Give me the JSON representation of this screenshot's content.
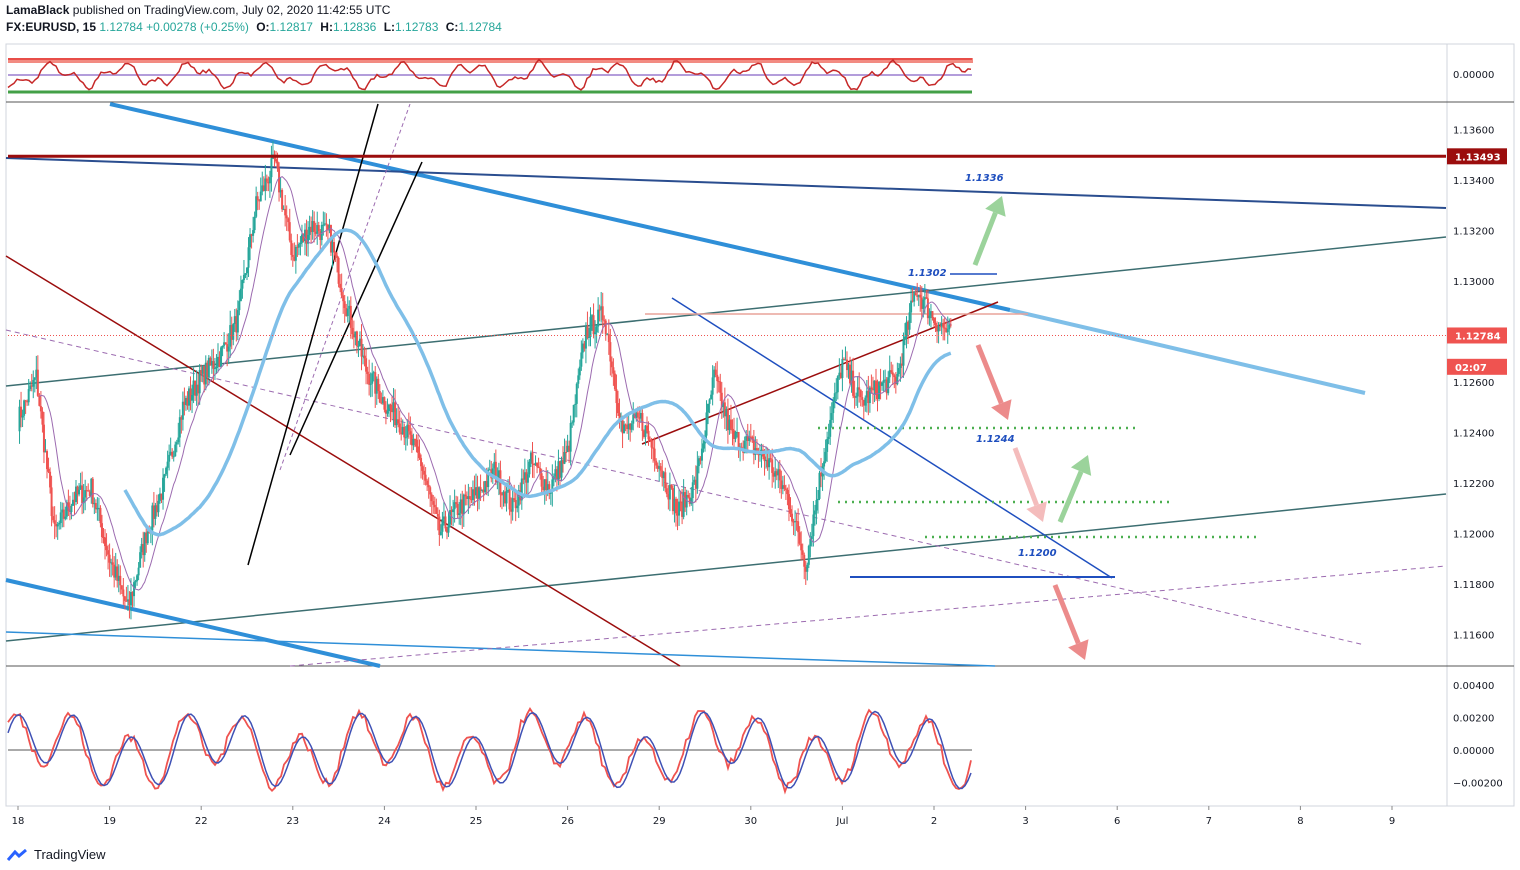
{
  "header": {
    "author": "LamaBlack",
    "published_text": "published on TradingView.com, July 02, 2020 11:42:55 UTC",
    "symbol": "FX:EURUSD, 15",
    "last": "1.12784",
    "change": "+0.00278 (+0.25%)",
    "o_label": "O:",
    "o_value": "1.12817",
    "h_label": "H:",
    "h_value": "1.12836",
    "l_label": "L:",
    "l_value": "1.12783",
    "c_label": "C:",
    "c_value": "1.12784"
  },
  "footer": {
    "brand": "TradingView",
    "logo_icon": "tradingview-logo-icon"
  },
  "colors": {
    "up": "#26a69a",
    "down": "#ef5350",
    "ma_fast": "#9c6bb0",
    "ma_slow": "#7fbfe8",
    "resistance": "#9b0d0d",
    "trend_blue": "#2f8fd8",
    "channel": "#3c6e71",
    "dotted_green": "#4caf50",
    "arrow_green": "#9bd39b",
    "arrow_red": "#ec8b8b"
  },
  "chart_data": [
    {
      "type": "candlestick",
      "panel": "main",
      "price_axis_ticks": [
        "1.13600",
        "1.13400",
        "1.13200",
        "1.13000",
        "1.12600",
        "1.12400",
        "1.12200",
        "1.12000",
        "1.11800",
        "1.11600"
      ],
      "ylim": [
        1.1148,
        1.137
      ],
      "time_axis_ticks": [
        "18",
        "19",
        "22",
        "23",
        "24",
        "25",
        "26",
        "29",
        "30",
        "Jul",
        "2",
        "3",
        "6",
        "7",
        "8",
        "9"
      ],
      "price_markers": [
        {
          "label": "1.13493",
          "value": 1.13493,
          "color": "#9b0d0d"
        },
        {
          "label": "1.12784",
          "value": 1.12784,
          "color": "#ef5350"
        },
        {
          "label": "02:07",
          "value": 1.1266,
          "color": "#ef5350"
        }
      ],
      "annotations": [
        {
          "text": "1.1336",
          "x": "Jul 2",
          "y": 1.1336
        },
        {
          "text": "1.1302",
          "x": "Jul 1",
          "y": 1.1302
        },
        {
          "text": "1.1244",
          "x": "Jul 2",
          "y": 1.1244
        },
        {
          "text": "1.1200",
          "x": "Jul 3",
          "y": 1.12
        }
      ],
      "horizontal_levels": [
        1.13493,
        1.1289,
        1.1244,
        1.1215,
        1.1201,
        1.1185
      ],
      "price_path": [
        [
          0,
          1.1245
        ],
        [
          1,
          1.1262
        ],
        [
          2,
          1.12
        ],
        [
          3,
          1.1214
        ],
        [
          4,
          1.1218
        ],
        [
          5,
          1.119
        ],
        [
          6,
          1.117
        ],
        [
          7,
          1.12
        ],
        [
          8,
          1.122
        ],
        [
          9,
          1.125
        ],
        [
          10,
          1.1262
        ],
        [
          11,
          1.127
        ],
        [
          12,
          1.1285
        ],
        [
          13,
          1.133
        ],
        [
          14,
          1.1347
        ],
        [
          15,
          1.131
        ],
        [
          16,
          1.1322
        ],
        [
          17,
          1.1318
        ],
        [
          18,
          1.1288
        ],
        [
          19,
          1.1265
        ],
        [
          20,
          1.1252
        ],
        [
          21,
          1.1243
        ],
        [
          22,
          1.1228
        ],
        [
          23,
          1.12
        ],
        [
          24,
          1.121
        ],
        [
          25,
          1.1215
        ],
        [
          26,
          1.1225
        ],
        [
          27,
          1.121
        ],
        [
          28,
          1.1228
        ],
        [
          29,
          1.1218
        ],
        [
          30,
          1.1232
        ],
        [
          31,
          1.128
        ],
        [
          32,
          1.1287
        ],
        [
          33,
          1.124
        ],
        [
          34,
          1.1245
        ],
        [
          35,
          1.1228
        ],
        [
          36,
          1.1208
        ],
        [
          37,
          1.122
        ],
        [
          38,
          1.1262
        ],
        [
          39,
          1.1238
        ],
        [
          40,
          1.1235
        ],
        [
          41,
          1.1228
        ],
        [
          42,
          1.1215
        ],
        [
          43,
          1.1188
        ],
        [
          44,
          1.1232
        ],
        [
          45,
          1.1268
        ],
        [
          46,
          1.1252
        ],
        [
          47,
          1.1258
        ],
        [
          48,
          1.1262
        ],
        [
          49,
          1.1297
        ],
        [
          50,
          1.1285
        ],
        [
          51,
          1.1278
        ]
      ]
    },
    {
      "type": "line",
      "panel": "top_oscillator",
      "ticks": [
        "0.00000"
      ],
      "ylim": [
        -1,
        1
      ]
    },
    {
      "type": "line",
      "panel": "bottom_oscillator",
      "ticks": [
        "0.00400",
        "0.00200",
        "0.00000",
        "−0.00200"
      ],
      "ylim": [
        -0.0032,
        0.0048
      ]
    }
  ]
}
